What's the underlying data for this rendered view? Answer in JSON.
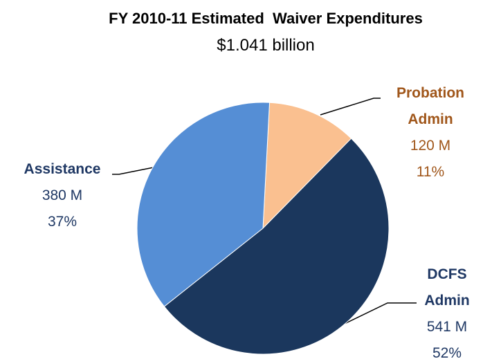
{
  "chart_data": {
    "type": "pie",
    "title": "FY 2010-11 Estimated  Waiver Expenditures",
    "subtitle": "$1.041 billion",
    "categories": [
      "Probation Admin",
      "DCFS Admin",
      "Assistance"
    ],
    "values": [
      120,
      541,
      380
    ],
    "value_labels": [
      "120 M",
      "541 M",
      "380 M"
    ],
    "percentage_labels": [
      "11%",
      "52%",
      "37%"
    ],
    "colors": [
      "#fac090",
      "#1b375d",
      "#558ed5"
    ],
    "label_colors": [
      "#a0561a",
      "#1f3864",
      "#1f3864"
    ]
  }
}
